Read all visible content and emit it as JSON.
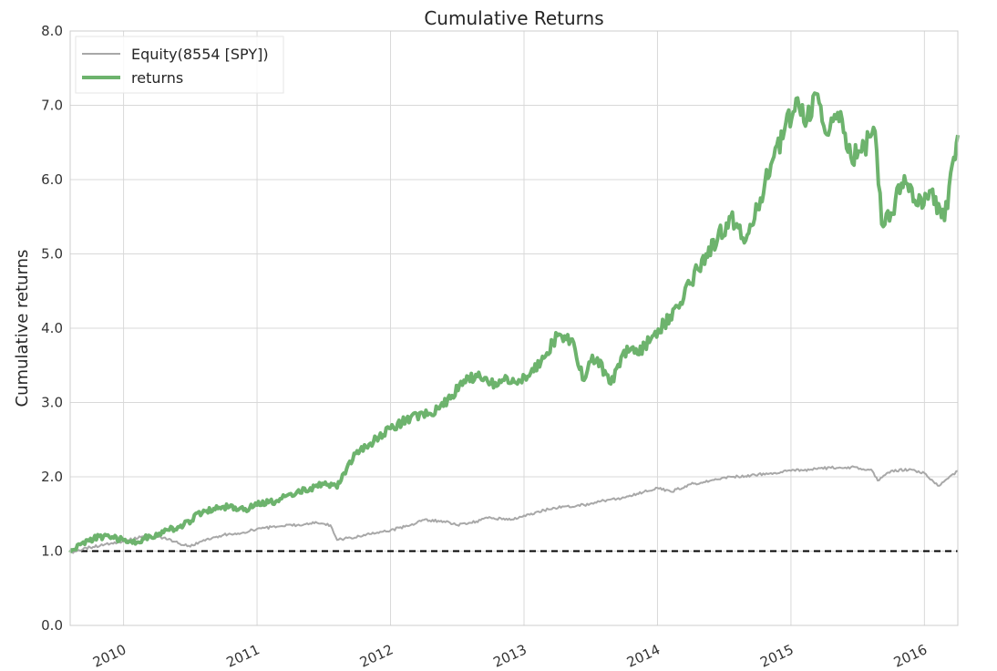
{
  "chart_data": {
    "type": "line",
    "title": "Cumulative Returns",
    "xlabel": "",
    "ylabel": "Cumulative returns",
    "ylim": [
      0.0,
      8.0
    ],
    "xlim": [
      2009.6,
      2016.25
    ],
    "yticks": [
      0.0,
      1.0,
      2.0,
      3.0,
      4.0,
      5.0,
      6.0,
      7.0,
      8.0
    ],
    "ytick_labels": [
      "0.0",
      "1.0",
      "2.0",
      "3.0",
      "4.0",
      "5.0",
      "6.0",
      "7.0",
      "8.0"
    ],
    "xticks": [
      2010,
      2011,
      2012,
      2013,
      2014,
      2015,
      2016
    ],
    "xtick_labels": [
      "2010",
      "2011",
      "2012",
      "2013",
      "2014",
      "2015",
      "2016"
    ],
    "grid": true,
    "legend_placement": "top-left",
    "reference_line": {
      "y": 1.0,
      "style": "dashed",
      "color": "#000000"
    },
    "series": [
      {
        "name": "Equity(8554 [SPY])",
        "color": "#a8a8a8",
        "x": [
          2009.6,
          2009.75,
          2009.9,
          2010.0,
          2010.15,
          2010.3,
          2010.42,
          2010.5,
          2010.6,
          2010.75,
          2010.9,
          2011.0,
          2011.15,
          2011.3,
          2011.45,
          2011.55,
          2011.6,
          2011.7,
          2011.8,
          2011.9,
          2012.0,
          2012.15,
          2012.25,
          2012.4,
          2012.5,
          2012.6,
          2012.75,
          2012.9,
          2013.0,
          2013.15,
          2013.3,
          2013.45,
          2013.6,
          2013.75,
          2013.9,
          2014.0,
          2014.1,
          2014.25,
          2014.4,
          2014.55,
          2014.7,
          2014.85,
          2015.0,
          2015.15,
          2015.3,
          2015.45,
          2015.6,
          2015.65,
          2015.75,
          2015.9,
          2016.0,
          2016.1,
          2016.2,
          2016.25
        ],
        "values": [
          0.98,
          1.05,
          1.1,
          1.13,
          1.2,
          1.18,
          1.1,
          1.06,
          1.15,
          1.22,
          1.25,
          1.3,
          1.33,
          1.35,
          1.38,
          1.35,
          1.15,
          1.18,
          1.22,
          1.25,
          1.28,
          1.35,
          1.42,
          1.4,
          1.35,
          1.38,
          1.45,
          1.42,
          1.48,
          1.55,
          1.6,
          1.62,
          1.68,
          1.72,
          1.8,
          1.85,
          1.8,
          1.9,
          1.95,
          2.0,
          2.02,
          2.05,
          2.08,
          2.1,
          2.12,
          2.13,
          2.1,
          1.95,
          2.08,
          2.1,
          2.05,
          1.88,
          2.02,
          2.08
        ]
      },
      {
        "name": "returns",
        "color": "#6db36d",
        "x": [
          2009.6,
          2009.72,
          2009.85,
          2010.0,
          2010.1,
          2010.2,
          2010.3,
          2010.45,
          2010.6,
          2010.75,
          2010.9,
          2011.0,
          2011.15,
          2011.3,
          2011.4,
          2011.5,
          2011.6,
          2011.65,
          2011.75,
          2011.85,
          2012.0,
          2012.15,
          2012.3,
          2012.45,
          2012.55,
          2012.65,
          2012.75,
          2012.85,
          2012.95,
          2013.05,
          2013.15,
          2013.25,
          2013.35,
          2013.45,
          2013.5,
          2013.55,
          2013.65,
          2013.75,
          2013.85,
          2013.95,
          2014.05,
          2014.15,
          2014.3,
          2014.45,
          2014.55,
          2014.65,
          2014.75,
          2014.85,
          2014.95,
          2015.05,
          2015.12,
          2015.2,
          2015.28,
          2015.35,
          2015.45,
          2015.55,
          2015.63,
          2015.68,
          2015.75,
          2015.85,
          2015.95,
          2016.05,
          2016.15,
          2016.22,
          2016.25
        ],
        "values": [
          0.98,
          1.15,
          1.2,
          1.15,
          1.12,
          1.2,
          1.25,
          1.35,
          1.55,
          1.6,
          1.55,
          1.62,
          1.68,
          1.8,
          1.85,
          1.9,
          1.85,
          2.05,
          2.35,
          2.45,
          2.65,
          2.8,
          2.85,
          3.05,
          3.3,
          3.35,
          3.25,
          3.3,
          3.25,
          3.4,
          3.6,
          3.9,
          3.85,
          3.3,
          3.55,
          3.6,
          3.25,
          3.7,
          3.65,
          3.85,
          4.05,
          4.3,
          4.8,
          5.2,
          5.5,
          5.15,
          5.6,
          6.2,
          6.65,
          7.1,
          6.8,
          7.15,
          6.6,
          6.9,
          6.3,
          6.45,
          6.65,
          5.4,
          5.55,
          6.05,
          5.65,
          5.85,
          5.45,
          6.3,
          6.6
        ]
      }
    ]
  }
}
